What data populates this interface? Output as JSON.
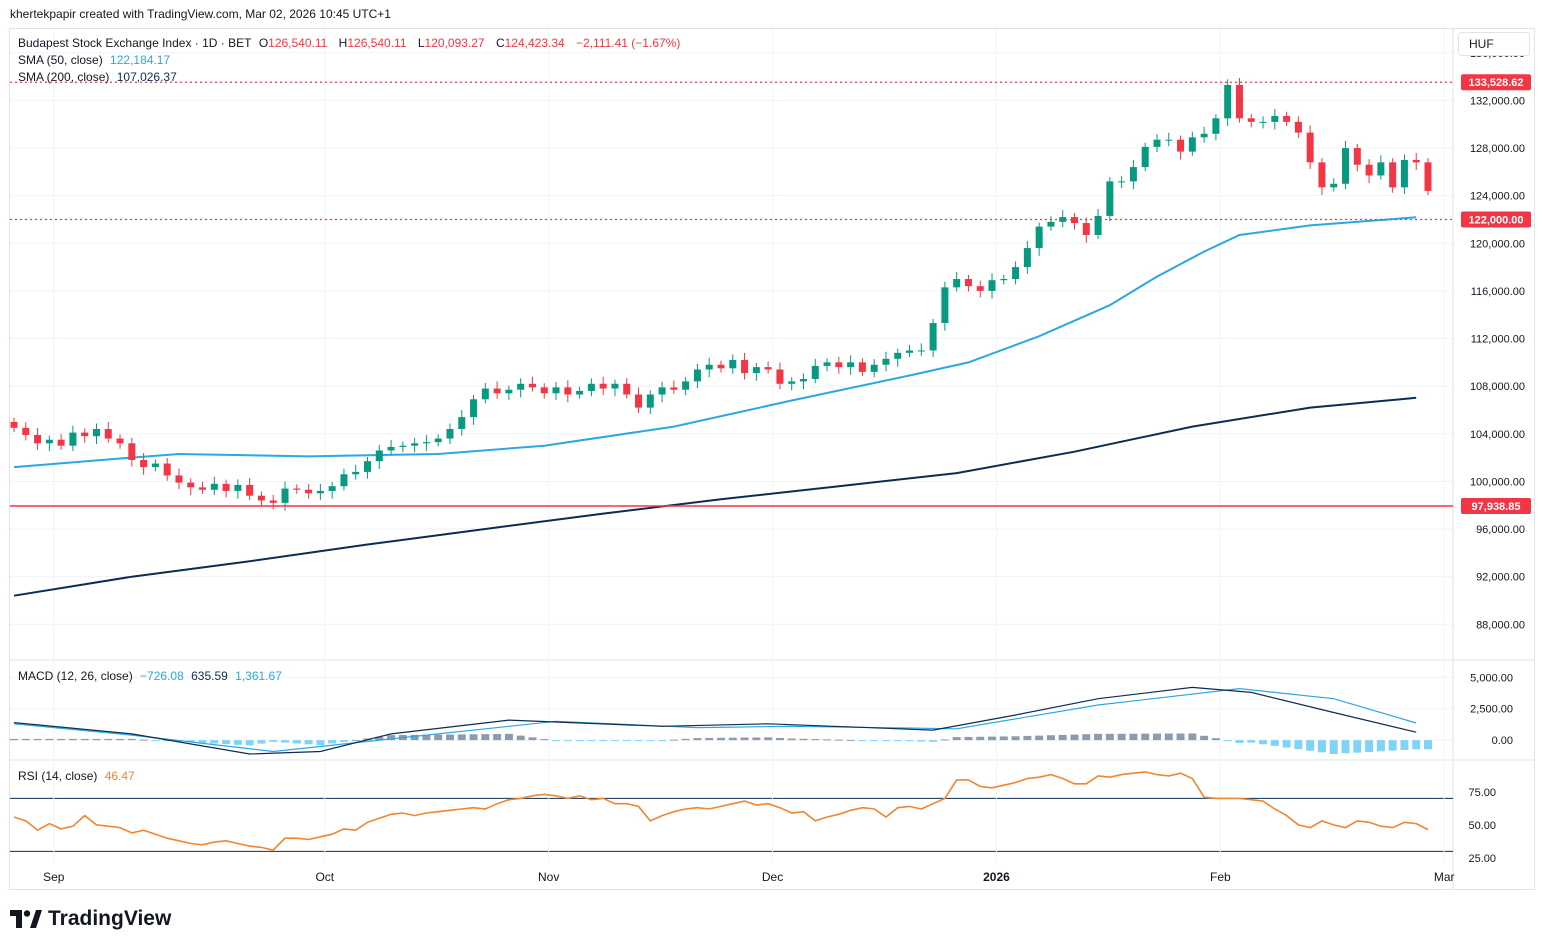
{
  "header": {
    "credit": "khertekpapir created with TradingView.com, Mar 02, 2026 10:45 UTC+1"
  },
  "legend": {
    "symbol": "Budapest Stock Exchange Index · 1D · BET",
    "open_label": "O",
    "open": "126,540.11",
    "high_label": "H",
    "high": "126,540.11",
    "low_label": "L",
    "low": "120,093.27",
    "close_label": "C",
    "close": "124,423.34",
    "change": "−2,111.41 (−1.67%)",
    "sma50_label": "SMA (50, close)",
    "sma50_value": "122,184.17",
    "sma200_label": "SMA (200, close)",
    "sma200_value": "107,026.37",
    "macd_label": "MACD (12, 26, close)",
    "macd_hist": "−726.08",
    "macd_line": "635.59",
    "macd_signal": "1,361.67",
    "rsi_label": "RSI (14, close)",
    "rsi_value": "46.47"
  },
  "unit_button": "HUF",
  "brand": "TradingView",
  "colors": {
    "up": "#089981",
    "down": "#f23645",
    "sma50": "#2ba7e4",
    "sma200": "#0c2d52",
    "macd": "#0c2d52",
    "signal": "#2ba7e4",
    "rsi": "#f0862e",
    "hist_pos": "#8d9bb0",
    "hist_neg": "#7fd3f7"
  },
  "chart_data": {
    "type": "candlestick",
    "x_ticks": [
      {
        "label": "Sep",
        "index": 1
      },
      {
        "label": "Oct",
        "index": 24
      },
      {
        "label": "Nov",
        "index": 43
      },
      {
        "label": "Dec",
        "index": 62
      },
      {
        "label": "2026",
        "index": 81
      },
      {
        "label": "Feb",
        "index": 100
      },
      {
        "label": "Mar",
        "index": 119
      }
    ],
    "price_axis": {
      "min": 85000,
      "max": 138000,
      "ticks": [
        "136,000.00",
        "132,000.00",
        "128,000.00",
        "124,000.00",
        "120,000.00",
        "116,000.00",
        "112,000.00",
        "108,000.00",
        "104,000.00",
        "100,000.00",
        "96,000.00",
        "92,000.00",
        "88,000.00"
      ]
    },
    "price_lines": [
      {
        "value": 133528.62,
        "label": "133,528.62",
        "style": "dotted"
      },
      {
        "value": 122000.0,
        "label": "122,000.00",
        "style": "dotted"
      },
      {
        "value": 97938.85,
        "label": "97,938.85",
        "style": "solid"
      }
    ],
    "closes": [
      104500,
      103900,
      103200,
      103500,
      103000,
      104100,
      103800,
      104400,
      103600,
      103200,
      101800,
      101200,
      101500,
      100500,
      99900,
      99500,
      99300,
      99800,
      99200,
      99700,
      98800,
      98400,
      98200,
      99400,
      99300,
      99000,
      99200,
      99600,
      100600,
      100800,
      101700,
      102600,
      102900,
      103000,
      103200,
      103300,
      103600,
      104400,
      105400,
      106900,
      107800,
      107400,
      107700,
      108200,
      107900,
      107400,
      107900,
      107300,
      107600,
      108200,
      107800,
      108200,
      107300,
      106200,
      107300,
      107900,
      107700,
      108400,
      109400,
      109800,
      109500,
      110200,
      109100,
      109600,
      109400,
      108200,
      108400,
      108600,
      109700,
      110000,
      109600,
      110000,
      109200,
      109800,
      110300,
      110800,
      111000,
      111000,
      113300,
      116300,
      117000,
      116400,
      116000,
      116900,
      117000,
      118000,
      119600,
      121400,
      121800,
      122200,
      121700,
      120700,
      122300,
      125200,
      125200,
      126400,
      128100,
      128700,
      128700,
      127700,
      128900,
      129200,
      130500,
      133300,
      130500,
      130200,
      130200,
      130700,
      130200,
      129300,
      126800,
      124700,
      125000,
      128000,
      126600,
      125700,
      126800,
      124700,
      127000,
      126800,
      124400
    ],
    "sma50_line": [
      [
        0,
        101200
      ],
      [
        10,
        102000
      ],
      [
        14,
        102300
      ],
      [
        25,
        102100
      ],
      [
        36,
        102300
      ],
      [
        45,
        103000
      ],
      [
        56,
        104600
      ],
      [
        66,
        106800
      ],
      [
        76,
        108900
      ],
      [
        81,
        110000
      ],
      [
        87,
        112200
      ],
      [
        93,
        114800
      ],
      [
        97,
        117200
      ],
      [
        101,
        119300
      ],
      [
        104,
        120700
      ],
      [
        110,
        121500
      ],
      [
        119,
        122184
      ]
    ],
    "sma200_line": [
      [
        0,
        90400
      ],
      [
        10,
        92000
      ],
      [
        20,
        93300
      ],
      [
        30,
        94700
      ],
      [
        40,
        96000
      ],
      [
        50,
        97300
      ],
      [
        60,
        98500
      ],
      [
        70,
        99600
      ],
      [
        80,
        100700
      ],
      [
        90,
        102500
      ],
      [
        100,
        104600
      ],
      [
        110,
        106200
      ],
      [
        119,
        107026
      ]
    ],
    "macd_axis": {
      "min": -1500,
      "max": 6300,
      "ticks": [
        "5,000.00",
        "2,500.00",
        "0.00"
      ]
    },
    "macd_line": [
      [
        0,
        1400
      ],
      [
        10,
        500
      ],
      [
        20,
        -1100
      ],
      [
        26,
        -900
      ],
      [
        32,
        500
      ],
      [
        42,
        1600
      ],
      [
        55,
        1100
      ],
      [
        64,
        1300
      ],
      [
        78,
        800
      ],
      [
        85,
        2000
      ],
      [
        92,
        3300
      ],
      [
        100,
        4200
      ],
      [
        105,
        3800
      ],
      [
        112,
        2200
      ],
      [
        119,
        636
      ]
    ],
    "signal_line": [
      [
        0,
        1300
      ],
      [
        10,
        400
      ],
      [
        22,
        -900
      ],
      [
        32,
        100
      ],
      [
        46,
        1500
      ],
      [
        58,
        1000
      ],
      [
        66,
        1100
      ],
      [
        80,
        900
      ],
      [
        92,
        2800
      ],
      [
        104,
        4100
      ],
      [
        112,
        3300
      ],
      [
        119,
        1362
      ]
    ],
    "rsi_axis": {
      "min": 22,
      "max": 99,
      "ticks": [
        "75.00",
        "50.00",
        "25.00"
      ],
      "bands": [
        70,
        30
      ]
    },
    "rsi": [
      56,
      53,
      46,
      51,
      47,
      49,
      57,
      50,
      49,
      48,
      44,
      46,
      43,
      40,
      38,
      36,
      35,
      37,
      38,
      36,
      34,
      33,
      31,
      40,
      40,
      39,
      41,
      43,
      47,
      46,
      52,
      55,
      58,
      59,
      57,
      59,
      60,
      61,
      62,
      63,
      62,
      66,
      69,
      70,
      72,
      73,
      72,
      70,
      72,
      69,
      70,
      66,
      66,
      64,
      53,
      57,
      60,
      62,
      63,
      62,
      64,
      66,
      68,
      65,
      66,
      63,
      59,
      60,
      53,
      56,
      58,
      61,
      63,
      62,
      56,
      63,
      64,
      62,
      66,
      70,
      84,
      84,
      79,
      78,
      80,
      82,
      85,
      86,
      88,
      85,
      81,
      81,
      87,
      86,
      88,
      89,
      90,
      88,
      87,
      89,
      85,
      71,
      70,
      70,
      70,
      69,
      68,
      62,
      57,
      50,
      48,
      53,
      50,
      48,
      53,
      52,
      49,
      48,
      52,
      51,
      46.47
    ]
  }
}
